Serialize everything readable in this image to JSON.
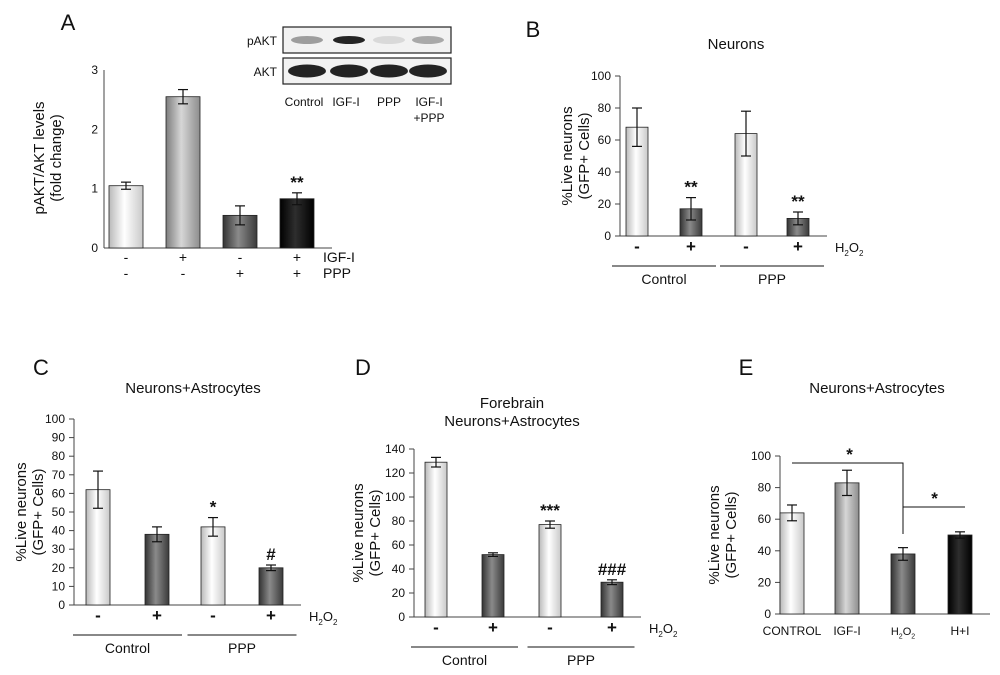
{
  "colors": {
    "white_bar": "#ffffff",
    "light_gray_bar": "#b5b5b5",
    "dark_gray_bar": "#5e5e5e",
    "black_bar": "#111111",
    "axis": "#444444"
  },
  "blot": {
    "row_labels": [
      "pAKT",
      "AKT"
    ],
    "lane_labels": [
      "Control",
      "IGF-I",
      "PPP",
      "IGF-I\n+PPP"
    ]
  },
  "chart_data": [
    {
      "panel": "A",
      "type": "bar",
      "title": "",
      "ylabel": "pAKT/AKT levels\n(fold change)",
      "ylim": [
        0,
        3
      ],
      "yticks": [
        0,
        1,
        2,
        3
      ],
      "values": [
        1.05,
        2.55,
        0.55,
        0.83
      ],
      "errors": [
        0.06,
        0.12,
        0.16,
        0.1
      ],
      "bar_colors": [
        "#ffffff",
        "#b5b5b5",
        "#5e5e5e",
        "#111111"
      ],
      "annotations": [
        "",
        "",
        "",
        "**"
      ],
      "condition_rows": [
        {
          "label": "IGF-I",
          "marks": [
            "-",
            "+",
            "-",
            "+"
          ]
        },
        {
          "label": "PPP",
          "marks": [
            "-",
            "-",
            "+",
            "+"
          ]
        }
      ]
    },
    {
      "panel": "B",
      "type": "bar",
      "title": "Neurons",
      "ylabel": "%Live neurons\n(GFP+ Cells)",
      "ylim": [
        0,
        100
      ],
      "yticks": [
        0,
        20,
        40,
        60,
        80,
        100
      ],
      "values": [
        68,
        17,
        64,
        11
      ],
      "errors": [
        12,
        7,
        14,
        4
      ],
      "bar_colors": [
        "#ffffff",
        "#5e5e5e",
        "#ffffff",
        "#5e5e5e"
      ],
      "annotations": [
        "",
        "**",
        "",
        "**"
      ],
      "marks": [
        "-",
        "+",
        "-",
        "+"
      ],
      "treatment_label": "H2O2",
      "groups": [
        "Control",
        "PPP"
      ]
    },
    {
      "panel": "C",
      "type": "bar",
      "title": "Neurons+Astrocytes",
      "ylabel": "%Live neurons\n(GFP+ Cells)",
      "ylim": [
        0,
        100
      ],
      "yticks": [
        0,
        10,
        20,
        30,
        40,
        50,
        60,
        70,
        80,
        90,
        100
      ],
      "values": [
        62,
        38,
        42,
        20
      ],
      "errors": [
        10,
        4,
        5,
        1.5
      ],
      "bar_colors": [
        "#ffffff",
        "#5e5e5e",
        "#ffffff",
        "#5e5e5e"
      ],
      "annotations": [
        "",
        "",
        "*",
        "#"
      ],
      "marks": [
        "-",
        "+",
        "-",
        "+"
      ],
      "treatment_label": "H2O2",
      "groups": [
        "Control",
        "PPP"
      ]
    },
    {
      "panel": "D",
      "type": "bar",
      "title": "Forebrain\nNeurons+Astrocytes",
      "ylabel": "%Live neurons\n(GFP+ Cells)",
      "ylim": [
        0,
        140
      ],
      "yticks": [
        0,
        20,
        40,
        60,
        80,
        100,
        120,
        140
      ],
      "values": [
        129,
        52,
        77,
        29
      ],
      "errors": [
        4,
        1.5,
        3,
        2
      ],
      "bar_colors": [
        "#ffffff",
        "#5e5e5e",
        "#ffffff",
        "#5e5e5e"
      ],
      "annotations": [
        "",
        "",
        "***",
        "###"
      ],
      "marks": [
        "-",
        "+",
        "-",
        "+"
      ],
      "treatment_label": "H2O2",
      "groups": [
        "Control",
        "PPP"
      ]
    },
    {
      "panel": "E",
      "type": "bar",
      "title": "Neurons+Astrocytes",
      "ylabel": "%Live neurons\n(GFP+ Cells)",
      "ylim": [
        0,
        100
      ],
      "yticks": [
        0,
        20,
        40,
        60,
        80,
        100
      ],
      "categories": [
        "CONTROL",
        "IGF-I",
        "H2O2",
        "H+I"
      ],
      "values": [
        64,
        83,
        38,
        50
      ],
      "errors": [
        5,
        8,
        4,
        2
      ],
      "bar_colors": [
        "#ffffff",
        "#b5b5b5",
        "#5e5e5e",
        "#111111"
      ],
      "annotations": [
        "*",
        "*"
      ]
    }
  ]
}
